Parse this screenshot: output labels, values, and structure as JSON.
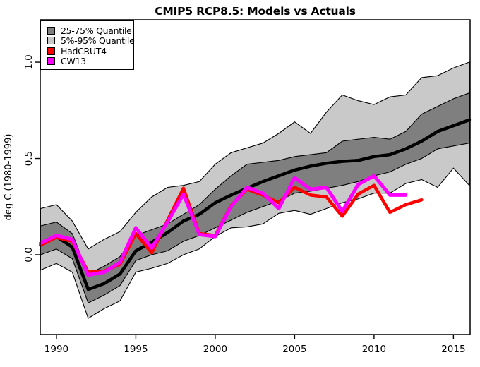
{
  "title": "CMIP5 RCP8.5: Models vs Actuals",
  "colors": {
    "background": "#ffffff",
    "axis": "#000000",
    "band_25_75": "#7f7f7f",
    "band_5_95": "#c9c9c9",
    "model_median": "#000000",
    "hadcrut4": "#ff0000",
    "cw13": "#ff00ff"
  },
  "legend": {
    "position": "topleft",
    "items": [
      {
        "key": "band-25-75",
        "label": "25-75% Quantile",
        "color": "#7f7f7f"
      },
      {
        "key": "band-5-95",
        "label": "5%-95% Quantile",
        "color": "#c9c9c9"
      },
      {
        "key": "hadcrut4",
        "label": "HadCRUT4",
        "color": "#ff0000"
      },
      {
        "key": "cw13",
        "label": "CW13",
        "color": "#ff00ff"
      }
    ]
  },
  "chart_data": {
    "type": "line",
    "title": "CMIP5 RCP8.5: Models vs Actuals",
    "xlabel": "",
    "ylabel": "deg C (1980-1999)",
    "grid": false,
    "legend_position": "topleft",
    "xlim": [
      1988.98,
      2016.05
    ],
    "ylim": [
      -0.414,
      1.22
    ],
    "x_axis": {
      "ticks": [
        1990,
        1995,
        2000,
        2005,
        2010,
        2015
      ]
    },
    "y_axis": {
      "label": "deg C (1980-1999)",
      "ticks": [
        0.0,
        0.5,
        1.0
      ],
      "tick_labels": [
        "0.0",
        "0.5",
        "1.0"
      ]
    },
    "x": [
      1989,
      1990,
      1991,
      1992,
      1993,
      1994,
      1995,
      1996,
      1997,
      1998,
      1999,
      2000,
      2001,
      2002,
      2003,
      2004,
      2005,
      2006,
      2007,
      2008,
      2009,
      2010,
      2011,
      2012,
      2013,
      2014,
      2015,
      2016
    ],
    "series": [
      {
        "name": "q95",
        "label": "95% quantile (upper edge of 5%-95% band)",
        "values": [
          0.24,
          0.26,
          0.175,
          0.03,
          0.08,
          0.12,
          0.22,
          0.3,
          0.35,
          0.36,
          0.38,
          0.47,
          0.53,
          0.555,
          0.58,
          0.63,
          0.69,
          0.63,
          0.74,
          0.83,
          0.8,
          0.78,
          0.82,
          0.83,
          0.92,
          0.93,
          0.97,
          1.0
        ]
      },
      {
        "name": "q75",
        "label": "75% quantile (upper edge of 25-75% band)",
        "values": [
          0.15,
          0.17,
          0.11,
          -0.1,
          -0.06,
          -0.01,
          0.1,
          0.13,
          0.16,
          0.21,
          0.26,
          0.34,
          0.41,
          0.47,
          0.48,
          0.49,
          0.51,
          0.52,
          0.53,
          0.59,
          0.6,
          0.61,
          0.6,
          0.64,
          0.73,
          0.77,
          0.81,
          0.84
        ]
      },
      {
        "name": "model_median",
        "label": "CMIP5 ensemble median (thick black line)",
        "values": [
          0.05,
          0.095,
          0.04,
          -0.18,
          -0.15,
          -0.1,
          0.02,
          0.065,
          0.115,
          0.175,
          0.21,
          0.27,
          0.31,
          0.345,
          0.38,
          0.41,
          0.44,
          0.46,
          0.475,
          0.485,
          0.49,
          0.51,
          0.52,
          0.55,
          0.59,
          0.64,
          0.67,
          0.7
        ]
      },
      {
        "name": "q25",
        "label": "25% quantile (lower edge of 25-75% band)",
        "values": [
          0.0,
          0.03,
          -0.02,
          -0.25,
          -0.21,
          -0.16,
          -0.03,
          0.0,
          0.02,
          0.07,
          0.1,
          0.14,
          0.18,
          0.22,
          0.25,
          0.28,
          0.32,
          0.33,
          0.345,
          0.36,
          0.38,
          0.41,
          0.43,
          0.47,
          0.5,
          0.55,
          0.565,
          0.58
        ]
      },
      {
        "name": "q05",
        "label": "5% quantile (lower edge of 5%-95% band)",
        "values": [
          -0.08,
          -0.045,
          -0.09,
          -0.33,
          -0.28,
          -0.24,
          -0.09,
          -0.07,
          -0.045,
          0.0,
          0.03,
          0.095,
          0.14,
          0.145,
          0.16,
          0.215,
          0.23,
          0.21,
          0.24,
          0.27,
          0.29,
          0.32,
          0.32,
          0.37,
          0.39,
          0.35,
          0.45,
          0.36
        ]
      },
      {
        "name": "hadcrut4",
        "label": "HadCRUT4",
        "values": [
          0.05,
          0.09,
          0.07,
          -0.09,
          -0.085,
          -0.05,
          0.11,
          0.01,
          0.18,
          0.345,
          0.11,
          0.1,
          0.255,
          0.34,
          0.31,
          0.27,
          0.35,
          0.31,
          0.3,
          0.2,
          0.315,
          0.36,
          0.22,
          0.26,
          0.285
        ]
      },
      {
        "name": "cw13",
        "label": "CW13",
        "values": [
          0.06,
          0.1,
          0.08,
          -0.105,
          -0.09,
          -0.04,
          0.14,
          0.035,
          0.17,
          0.315,
          0.105,
          0.095,
          0.25,
          0.35,
          0.32,
          0.24,
          0.4,
          0.34,
          0.35,
          0.225,
          0.365,
          0.41,
          0.31,
          0.31
        ]
      }
    ]
  }
}
